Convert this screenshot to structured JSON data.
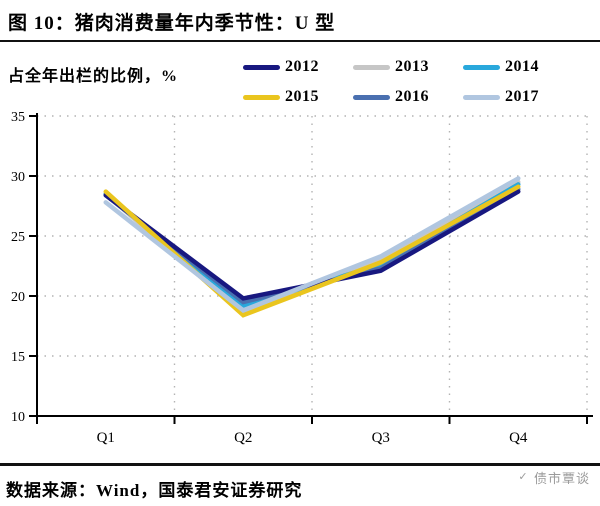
{
  "title": "图 10：猪肉消费量年内季节性：U 型",
  "axis_title": "占全年出栏的比例，%",
  "footer": {
    "source": "数据来源：Wind，国泰君安证券研究",
    "watermark": "债市覃谈"
  },
  "colors": {
    "axis": "#000000",
    "grid": "#b3b3b3",
    "watermark_gray": "#9b9b9b"
  },
  "chart_data": {
    "type": "line",
    "categories": [
      "Q1",
      "Q2",
      "Q3",
      "Q4"
    ],
    "series": [
      {
        "name": "2012",
        "color": "#181880",
        "values": [
          28.4,
          19.8,
          22.1,
          28.7
        ],
        "z": 4
      },
      {
        "name": "2013",
        "color": "#c6c6c6",
        "values": [
          28.5,
          18.5,
          23.0,
          29.5
        ],
        "z": 1
      },
      {
        "name": "2014",
        "color": "#29a8dc",
        "values": [
          28.5,
          19.2,
          22.6,
          29.3
        ],
        "z": 2
      },
      {
        "name": "2015",
        "color": "#eac51e",
        "values": [
          28.7,
          18.4,
          22.8,
          29.1
        ],
        "z": 5
      },
      {
        "name": "2016",
        "color": "#4a70b0",
        "values": [
          28.4,
          19.5,
          22.3,
          28.9
        ],
        "z": 3
      },
      {
        "name": "2017",
        "color": "#b0c6e0",
        "values": [
          27.8,
          18.8,
          23.3,
          29.8
        ],
        "z": 6
      }
    ],
    "ylim": [
      10,
      35
    ],
    "yticks": [
      10,
      15,
      20,
      25,
      30,
      35
    ],
    "grid": "dotted",
    "legend_position": "top-right"
  }
}
